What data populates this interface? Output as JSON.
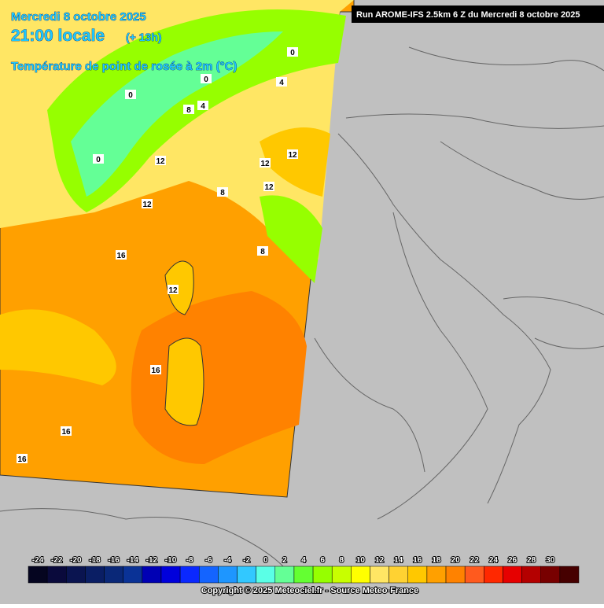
{
  "header": {
    "date": "Mercredi 8 octobre 2025",
    "time": "21:00 locale",
    "lead": "(+ 13h)",
    "parameter": "Température de point de rosée à 2m (°C)",
    "run": "Run AROME-IFS 2.5km 6 Z du Mercredi 8 octobre 2025"
  },
  "contour_labels": [
    0,
    4,
    0,
    0,
    4,
    8,
    0,
    12,
    12,
    12,
    12,
    8,
    12,
    16,
    12,
    8,
    16,
    16,
    16
  ],
  "colorbar": {
    "ticks": [
      -24,
      -22,
      -20,
      -18,
      -16,
      -14,
      -12,
      -10,
      -8,
      -6,
      -4,
      -2,
      0,
      2,
      4,
      6,
      8,
      10,
      12,
      14,
      16,
      18,
      20,
      22,
      24,
      26,
      28,
      30
    ],
    "colors": [
      "#050520",
      "#0a0a3c",
      "#0a1450",
      "#0a1e64",
      "#0a2878",
      "#0a3296",
      "#0000b4",
      "#0000dc",
      "#0a28ff",
      "#1464ff",
      "#1e96ff",
      "#32c8ff",
      "#5affe6",
      "#64ff96",
      "#64ff32",
      "#96ff00",
      "#c8ff00",
      "#ffff00",
      "#ffe664",
      "#ffd232",
      "#ffc800",
      "#ffa000",
      "#ff8200",
      "#ff5a1e",
      "#ff2800",
      "#e60000",
      "#b40000",
      "#780000",
      "#460000"
    ]
  },
  "footer": "Copyright © 2025 Meteociel.fr - Source Meteo-France"
}
